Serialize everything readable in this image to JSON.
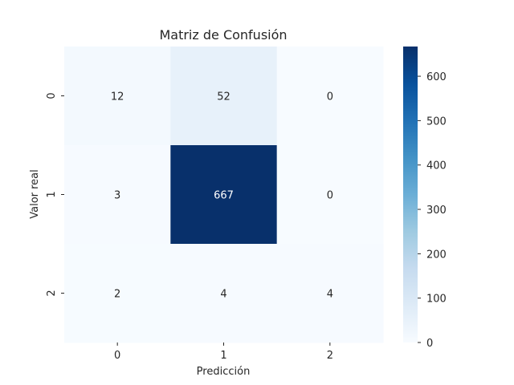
{
  "chart_data": {
    "type": "heatmap",
    "title": "Matriz de Confusión",
    "xlabel": "Predicción",
    "ylabel": "Valor real",
    "x_categories": [
      "0",
      "1",
      "2"
    ],
    "y_categories": [
      "0",
      "1",
      "2"
    ],
    "values": [
      [
        12,
        52,
        0
      ],
      [
        3,
        667,
        0
      ],
      [
        2,
        4,
        4
      ]
    ],
    "colormap": "Blues",
    "color_range": [
      0,
      667
    ],
    "colorbar_ticks": [
      0,
      100,
      200,
      300,
      400,
      500,
      600
    ],
    "colorbar_tick_labels": [
      "0",
      "100",
      "200",
      "300",
      "400",
      "500",
      "600"
    ]
  }
}
